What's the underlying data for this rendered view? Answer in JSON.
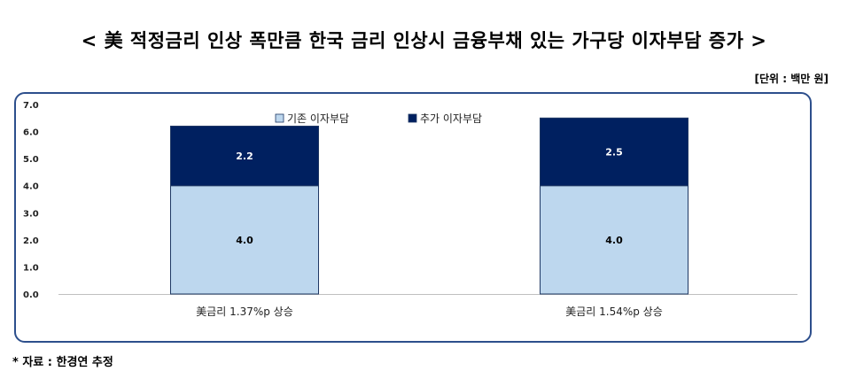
{
  "title": "< 美 적정금리 인상 폭만큼 한국 금리 인상시 금융부채 있는 가구당 이자부담 증가 >",
  "unit_label": "[단위 : 백만 원]",
  "source_note": "* 자료 : 한경연 추정",
  "chart_data": {
    "type": "bar",
    "stacked": true,
    "categories": [
      "美금리 1.37%p 상승",
      "美금리 1.54%p 상승"
    ],
    "series": [
      {
        "name": "기존 이자부담",
        "values": [
          4.0,
          4.0
        ],
        "color": "#bdd7ee"
      },
      {
        "name": "추가 이자부담",
        "values": [
          2.2,
          2.5
        ],
        "color": "#002060"
      }
    ],
    "ylim": [
      0,
      7
    ],
    "yticks": [
      "0.0",
      "1.0",
      "2.0",
      "3.0",
      "4.0",
      "5.0",
      "6.0",
      "7.0"
    ],
    "legend_position": "top-center",
    "grid": false
  }
}
